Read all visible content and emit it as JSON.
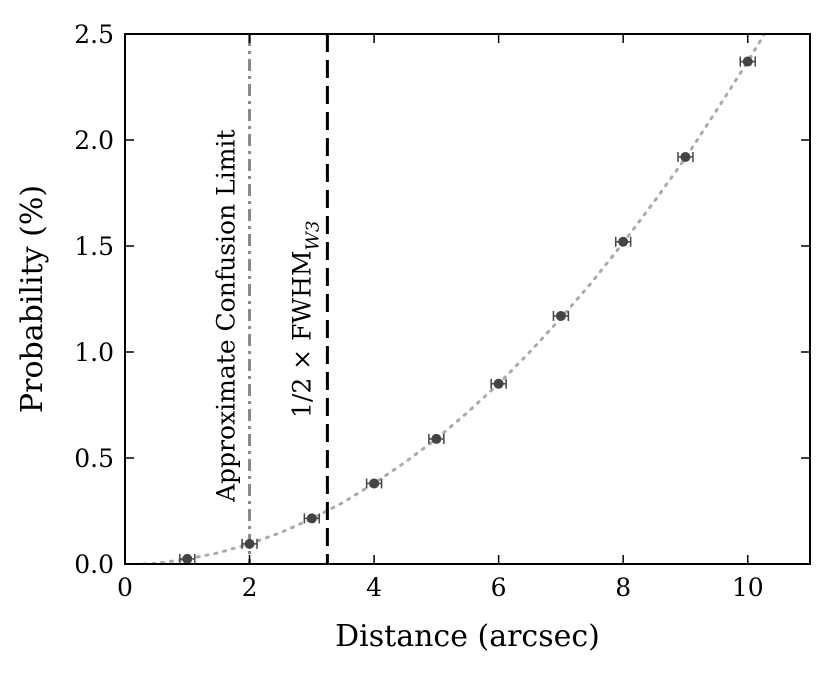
{
  "chart_data": {
    "type": "scatter",
    "xlabel": "Distance (arcsec)",
    "ylabel": "Probability (%)",
    "xlim": [
      0,
      11
    ],
    "ylim": [
      0,
      2.5
    ],
    "x_ticks": [
      0,
      2,
      4,
      6,
      8,
      10
    ],
    "x_tick_labels": [
      "0",
      "2",
      "4",
      "6",
      "8",
      "10"
    ],
    "y_ticks": [
      0,
      0.5,
      1.0,
      1.5,
      2.0,
      2.5
    ],
    "y_tick_labels": [
      "0.0",
      "0.5",
      "1.0",
      "1.5",
      "2.0",
      "2.5"
    ],
    "grid": false,
    "points": {
      "x": [
        1,
        2,
        3,
        4,
        5,
        6,
        7,
        8,
        9,
        10
      ],
      "y": [
        0.024,
        0.095,
        0.215,
        0.38,
        0.59,
        0.85,
        1.17,
        1.52,
        1.92,
        2.37
      ],
      "xerr": [
        0.12,
        0.12,
        0.12,
        0.12,
        0.12,
        0.12,
        0.12,
        0.12,
        0.12,
        0.12
      ],
      "color": "#444444"
    },
    "fit_curve": {
      "style": "dotted",
      "color": "#aaaaaa",
      "x": [
        0.3,
        0.5,
        1,
        1.5,
        2,
        2.5,
        3,
        3.5,
        4,
        4.5,
        5,
        5.5,
        6,
        6.5,
        7,
        7.5,
        8,
        8.5,
        9,
        9.5,
        10,
        10.3
      ],
      "y": [
        0.0,
        0.003,
        0.023,
        0.053,
        0.095,
        0.148,
        0.213,
        0.29,
        0.38,
        0.48,
        0.59,
        0.715,
        0.85,
        1.0,
        1.16,
        1.33,
        1.515,
        1.71,
        1.915,
        2.14,
        2.37,
        2.515
      ]
    },
    "vlines": [
      {
        "x": 2.0,
        "style": "dashdot",
        "color": "#888888",
        "label": "Approximate Confusion Limit"
      },
      {
        "x": 3.25,
        "style": "dashed",
        "color": "#000000",
        "label_main": "1/2 × FWHM",
        "label_sub": "W3"
      }
    ]
  }
}
